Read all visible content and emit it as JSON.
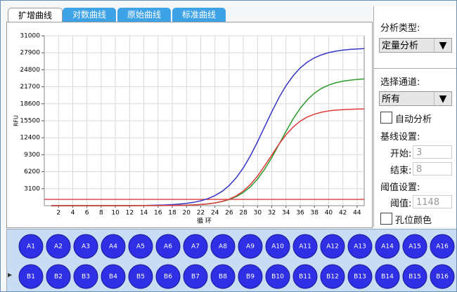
{
  "tabs": [
    "扩增曲线",
    "对数曲线",
    "原始曲线",
    "标准曲线"
  ],
  "chart_data": {
    "type": "line",
    "x": [
      1,
      2,
      3,
      4,
      5,
      6,
      7,
      8,
      9,
      10,
      11,
      12,
      13,
      14,
      15,
      16,
      17,
      18,
      19,
      20,
      21,
      22,
      23,
      24,
      25,
      26,
      27,
      28,
      29,
      30,
      31,
      32,
      33,
      34,
      35,
      36,
      37,
      38,
      39,
      40,
      41,
      42,
      43,
      44,
      45
    ],
    "series": [
      {
        "color": "#3535c8",
        "values": [
          0,
          0,
          0,
          1,
          1,
          2,
          3,
          4,
          6,
          9,
          13,
          19,
          29,
          42,
          61,
          90,
          132,
          193,
          283,
          412,
          600,
          878,
          1269,
          1834,
          2595,
          3673,
          5088,
          6900,
          9114,
          11660,
          14400,
          17140,
          19690,
          21900,
          23700,
          25130,
          26200,
          26980,
          27530,
          27930,
          28200,
          28390,
          28520,
          28610,
          28660
        ]
      },
      {
        "color": "#2a9a2a",
        "values": [
          0,
          0,
          0,
          0,
          0,
          0,
          1,
          1,
          2,
          3,
          3,
          5,
          6,
          9,
          12,
          18,
          27,
          41,
          63,
          95,
          145,
          218,
          329,
          495,
          740,
          1110,
          1640,
          2395,
          3450,
          4865,
          6650,
          8790,
          11160,
          13570,
          15830,
          17770,
          19330,
          20530,
          21400,
          22000,
          22430,
          22720,
          22910,
          23040,
          23130
        ]
      },
      {
        "color": "#e03a3a",
        "values": [
          0,
          0,
          0,
          0,
          0,
          0,
          1,
          1,
          2,
          3,
          4,
          5,
          7,
          9,
          13,
          18,
          25,
          33,
          50,
          83,
          130,
          204,
          318,
          495,
          770,
          1180,
          1790,
          2670,
          3870,
          5410,
          7260,
          9250,
          11200,
          12940,
          14340,
          15420,
          16180,
          16690,
          17050,
          17290,
          17430,
          17530,
          17590,
          17630,
          17650
        ]
      }
    ],
    "xlim": [
      0,
      45
    ],
    "ylim": [
      0,
      31000
    ],
    "xticks": [
      2,
      4,
      6,
      8,
      10,
      12,
      14,
      16,
      18,
      20,
      22,
      24,
      26,
      28,
      30,
      32,
      34,
      36,
      38,
      40,
      42,
      44
    ],
    "yticks": [
      3100,
      6200,
      9300,
      12400,
      15500,
      18600,
      21700,
      24800,
      27900,
      31000
    ],
    "ylabel": "RFU",
    "xlabel": "循 环",
    "grid": true,
    "threshold_color": "#e03a3a"
  },
  "panel": {
    "analysis_type_label": "分析类型:",
    "analysis_type": "定量分析",
    "dropdown_arrow": "▼",
    "channel_label": "选择通道:",
    "channel": "所有",
    "auto_analysis": "自动分析",
    "baseline_label": "基线设置:",
    "start_label": "开始:",
    "start": 3,
    "end_label": "结束:",
    "end": 8,
    "threshold_label": "阈值设置:",
    "threshold_field_label": "阈值:",
    "threshold": 1148,
    "well_color": "孔位颜色"
  },
  "wells": [
    [
      "A1",
      "A2",
      "A3",
      "A4",
      "A5",
      "A6",
      "A7",
      "A8",
      "A9",
      "A10",
      "A11",
      "A12",
      "A13",
      "A14",
      "A15",
      "A16"
    ],
    [
      "B1",
      "B2",
      "B3",
      "B4",
      "B5",
      "B6",
      "B7",
      "B8",
      "B9",
      "B10",
      "B11",
      "B12",
      "B13",
      "B14",
      "B15",
      "B16"
    ]
  ]
}
